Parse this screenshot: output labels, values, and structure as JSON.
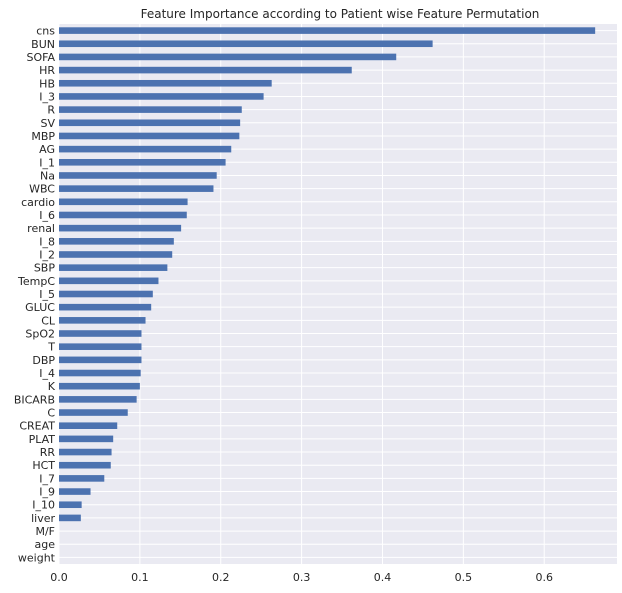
{
  "chart_data": {
    "type": "bar",
    "orientation": "horizontal",
    "title": "Feature Importance according to Patient wise Feature Permutation",
    "xlabel": "",
    "ylabel": "",
    "xlim": [
      0,
      0.69
    ],
    "xticks": [
      "0.0",
      "0.1",
      "0.2",
      "0.3",
      "0.4",
      "0.5",
      "0.6"
    ],
    "grid": true,
    "categories": [
      "cns",
      "BUN",
      "SOFA",
      "HR",
      "HB",
      "I_3",
      "R",
      "SV",
      "MBP",
      "AG",
      "I_1",
      "Na",
      "WBC",
      "cardio",
      "I_6",
      "renal",
      "I_8",
      "I_2",
      "SBP",
      "TempC",
      "I_5",
      "GLUC",
      "CL",
      "SpO2",
      "T",
      "DBP",
      "I_4",
      "K",
      "BICARB",
      "C",
      "CREAT",
      "PLAT",
      "RR",
      "HCT",
      "I_7",
      "I_9",
      "I_10",
      "liver",
      "M/F",
      "age",
      "weight"
    ],
    "values": [
      0.663,
      0.462,
      0.417,
      0.362,
      0.263,
      0.253,
      0.226,
      0.224,
      0.223,
      0.213,
      0.206,
      0.195,
      0.191,
      0.159,
      0.158,
      0.151,
      0.142,
      0.14,
      0.134,
      0.123,
      0.116,
      0.114,
      0.107,
      0.102,
      0.102,
      0.102,
      0.101,
      0.1,
      0.096,
      0.085,
      0.072,
      0.067,
      0.065,
      0.064,
      0.056,
      0.039,
      0.028,
      0.027,
      0.0,
      0.0,
      0.0
    ],
    "bar_color": "#4c72b0",
    "background_color": "#eaeaf2",
    "grid_color": "#ffffff"
  }
}
